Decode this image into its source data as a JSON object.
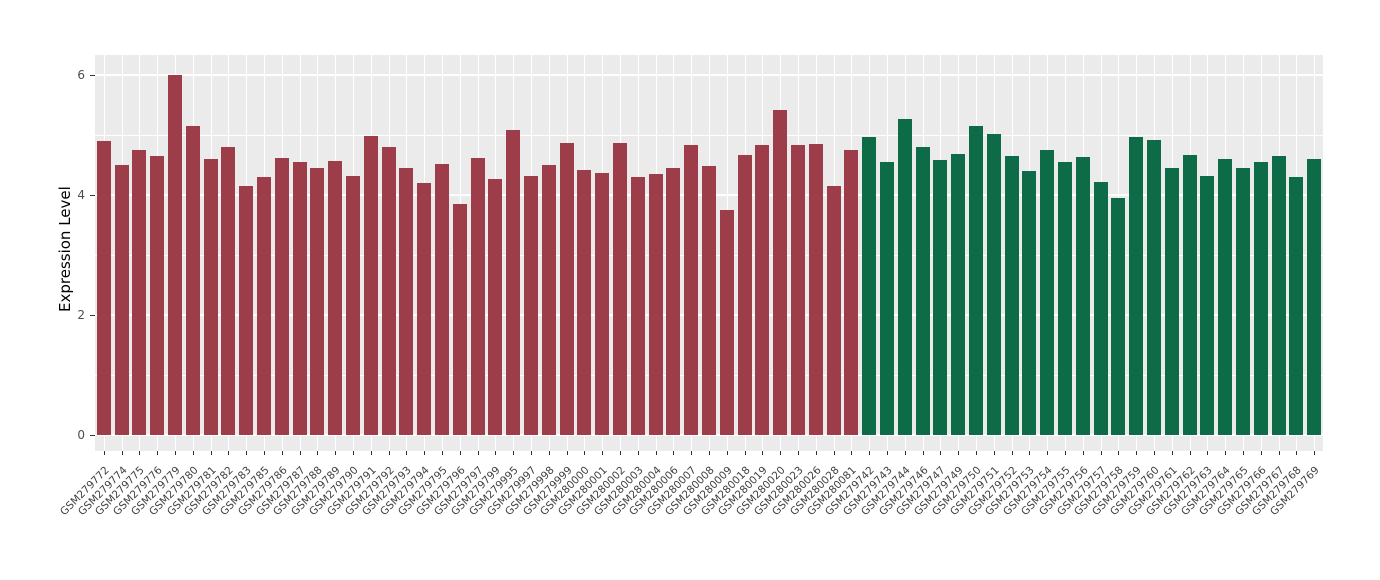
{
  "chart_data": {
    "type": "bar",
    "title": "",
    "xlabel": "",
    "ylabel": "Expression Level",
    "ylim": [
      0,
      6
    ],
    "yticks": [
      0,
      2,
      4,
      6
    ],
    "yticks_minor": [
      1,
      3,
      5
    ],
    "grid": true,
    "legend_position": "none",
    "panel_background": "#EBEBEB",
    "group_colors": {
      "groupA": "#9E3D4A",
      "groupB": "#0E6B47"
    },
    "categories": [
      "GSM279772",
      "GSM279774",
      "GSM279775",
      "GSM279776",
      "GSM279779",
      "GSM279780",
      "GSM279781",
      "GSM279782",
      "GSM279783",
      "GSM279785",
      "GSM279786",
      "GSM279787",
      "GSM279788",
      "GSM279789",
      "GSM279790",
      "GSM279791",
      "GSM279792",
      "GSM279793",
      "GSM279794",
      "GSM279795",
      "GSM279796",
      "GSM279797",
      "GSM279799",
      "GSM279995",
      "GSM279997",
      "GSM279998",
      "GSM279999",
      "GSM280000",
      "GSM280001",
      "GSM280002",
      "GSM280003",
      "GSM280004",
      "GSM280006",
      "GSM280007",
      "GSM280008",
      "GSM280009",
      "GSM280018",
      "GSM280019",
      "GSM280020",
      "GSM280023",
      "GSM280026",
      "GSM280028",
      "GSM280081",
      "GSM279742",
      "GSM279743",
      "GSM279744",
      "GSM279746",
      "GSM279747",
      "GSM279749",
      "GSM279750",
      "GSM279751",
      "GSM279752",
      "GSM279753",
      "GSM279754",
      "GSM279755",
      "GSM279756",
      "GSM279757",
      "GSM279758",
      "GSM279759",
      "GSM279760",
      "GSM279761",
      "GSM279762",
      "GSM279763",
      "GSM279764",
      "GSM279765",
      "GSM279766",
      "GSM279767",
      "GSM279768",
      "GSM279769"
    ],
    "values": [
      4.9,
      4.5,
      4.75,
      4.65,
      6.0,
      5.15,
      4.6,
      4.8,
      4.15,
      4.3,
      4.62,
      4.55,
      4.45,
      4.57,
      4.32,
      4.98,
      4.8,
      4.45,
      4.2,
      4.52,
      3.85,
      4.62,
      4.27,
      5.08,
      4.32,
      4.5,
      4.87,
      4.42,
      4.37,
      4.86,
      4.3,
      4.35,
      4.45,
      4.84,
      4.48,
      3.75,
      4.67,
      4.83,
      5.42,
      4.84,
      4.85,
      4.15,
      4.75,
      4.97,
      4.55,
      5.27,
      4.8,
      4.58,
      4.68,
      5.15,
      5.02,
      4.65,
      4.4,
      4.75,
      4.55,
      4.63,
      4.22,
      3.95,
      4.97,
      4.92,
      4.45,
      4.67,
      4.32,
      4.6,
      4.45,
      4.55,
      4.65,
      4.3,
      4.6
    ],
    "groups": [
      "groupA",
      "groupA",
      "groupA",
      "groupA",
      "groupA",
      "groupA",
      "groupA",
      "groupA",
      "groupA",
      "groupA",
      "groupA",
      "groupA",
      "groupA",
      "groupA",
      "groupA",
      "groupA",
      "groupA",
      "groupA",
      "groupA",
      "groupA",
      "groupA",
      "groupA",
      "groupA",
      "groupA",
      "groupA",
      "groupA",
      "groupA",
      "groupA",
      "groupA",
      "groupA",
      "groupA",
      "groupA",
      "groupA",
      "groupA",
      "groupA",
      "groupA",
      "groupA",
      "groupA",
      "groupA",
      "groupA",
      "groupA",
      "groupA",
      "groupA",
      "groupB",
      "groupB",
      "groupB",
      "groupB",
      "groupB",
      "groupB",
      "groupB",
      "groupB",
      "groupB",
      "groupB",
      "groupB",
      "groupB",
      "groupB",
      "groupB",
      "groupB",
      "groupB",
      "groupB",
      "groupB",
      "groupB",
      "groupB",
      "groupB",
      "groupB",
      "groupB",
      "groupB",
      "groupB",
      "groupB"
    ]
  }
}
